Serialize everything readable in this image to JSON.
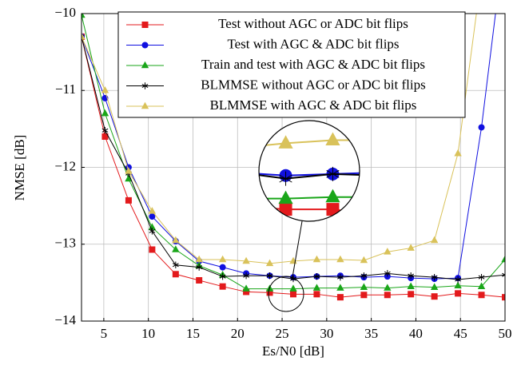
{
  "chart_data": {
    "type": "line",
    "xlabel": "Es/N0 [dB]",
    "ylabel": "NMSE [dB]",
    "x": [
      2.5,
      5.14,
      7.78,
      10.42,
      13.06,
      15.69,
      18.33,
      20.97,
      23.61,
      26.25,
      28.89,
      31.53,
      34.17,
      36.81,
      39.44,
      42.08,
      44.72,
      47.36,
      50
    ],
    "xlim": [
      2.5,
      50
    ],
    "xticks": [
      5,
      10,
      15,
      20,
      25,
      30,
      35,
      40,
      45,
      50
    ],
    "ylim": [
      -14,
      -10
    ],
    "yticks": [
      {
        "value": -14,
        "label": "−14"
      },
      {
        "value": -13,
        "label": "−13"
      },
      {
        "value": -12,
        "label": "−12"
      },
      {
        "value": -11,
        "label": "−11"
      },
      {
        "value": -10,
        "label": "−10"
      }
    ],
    "grid": true,
    "legend": "top",
    "series": [
      {
        "name": "Test without AGC or ADC bit flips",
        "color": "#e31a1c",
        "marker": "square",
        "values": [
          -10.3,
          -11.6,
          -12.43,
          -13.07,
          -13.39,
          -13.47,
          -13.55,
          -13.62,
          -13.63,
          -13.65,
          -13.65,
          -13.69,
          -13.66,
          -13.66,
          -13.65,
          -13.68,
          -13.64,
          -13.66,
          -13.69
        ]
      },
      {
        "name": "Test with AGC & ADC bit flips",
        "color": "#1010e0",
        "marker": "circle",
        "values": [
          -10.3,
          -11.1,
          -12.0,
          -12.64,
          -12.96,
          -13.22,
          -13.3,
          -13.38,
          -13.41,
          -13.43,
          -13.42,
          -13.41,
          -13.43,
          -13.42,
          -13.44,
          -13.45,
          -13.44,
          -11.48,
          -9.0
        ]
      },
      {
        "name": "Train and test with AGC & ADC bit flips",
        "color": "#1aa61a",
        "marker": "triangle",
        "values": [
          -10.02,
          -11.3,
          -12.15,
          -12.78,
          -13.07,
          -13.28,
          -13.4,
          -13.58,
          -13.58,
          -13.58,
          -13.57,
          -13.57,
          -13.56,
          -13.57,
          -13.55,
          -13.56,
          -13.54,
          -13.55,
          -13.2
        ]
      },
      {
        "name": "BLMMSE without AGC or ADC bit flips",
        "color": "#000000",
        "marker": "star",
        "values": [
          -10.3,
          -11.52,
          -12.08,
          -12.83,
          -13.27,
          -13.3,
          -13.42,
          -13.41,
          -13.41,
          -13.45,
          -13.42,
          -13.43,
          -13.41,
          -13.38,
          -13.41,
          -13.43,
          -13.46,
          -13.43,
          -13.4
        ]
      },
      {
        "name": "BLMMSE with AGC & ADC bit flips",
        "color": "#d9c25a",
        "marker": "triangle",
        "values": [
          -10.3,
          -11.0,
          -12.05,
          -12.57,
          -12.95,
          -13.2,
          -13.2,
          -13.22,
          -13.25,
          -13.22,
          -13.2,
          -13.2,
          -13.21,
          -13.1,
          -13.05,
          -12.95,
          -11.82,
          -9.5,
          -8.0
        ]
      }
    ]
  }
}
